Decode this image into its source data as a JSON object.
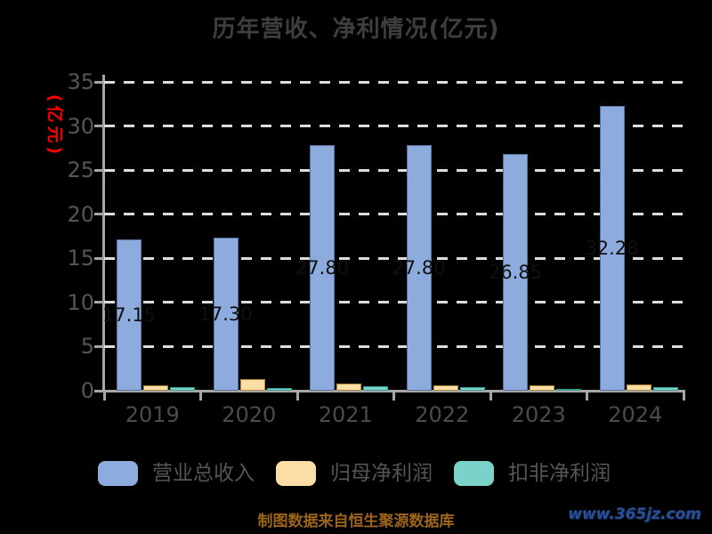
{
  "title": "历年营收、净利情况(亿元)",
  "y_axis": {
    "label": "(亿元)",
    "label_color": "#ff0000",
    "ticks": [
      0,
      5,
      10,
      15,
      20,
      25,
      30,
      35
    ]
  },
  "chart_data": {
    "type": "bar",
    "title": "历年营收、净利情况(亿元)",
    "categories": [
      "2019",
      "2020",
      "2021",
      "2022",
      "2023",
      "2024"
    ],
    "ylabel": "(亿元)",
    "ylim": [
      0,
      35
    ],
    "grid": "horizontal-dashed",
    "legend_position": "bottom",
    "series": [
      {
        "name": "营业总收入",
        "color": "#8dabdc",
        "border_color": "#56729f",
        "values": [
          17.15,
          17.3,
          27.8,
          27.8,
          26.85,
          32.28
        ],
        "bar_labels": [
          "17.15",
          "17.30",
          "27.80",
          "27.80",
          "26.85",
          "32.28"
        ]
      },
      {
        "name": "归母净利润",
        "color": "#fcdda6",
        "border_color": "#b08a3e",
        "values": [
          0.6,
          1.3,
          0.85,
          0.6,
          0.6,
          0.7
        ],
        "bar_labels": []
      },
      {
        "name": "扣非净利润",
        "color": "#7bd2c9",
        "border_color": "#3d9e96",
        "values": [
          0.45,
          0.3,
          0.55,
          0.45,
          0.25,
          0.4
        ],
        "bar_labels": []
      }
    ]
  },
  "footer": {
    "credit": "制图数据来自恒生聚源数据库",
    "watermark": "www.365jz.com"
  }
}
